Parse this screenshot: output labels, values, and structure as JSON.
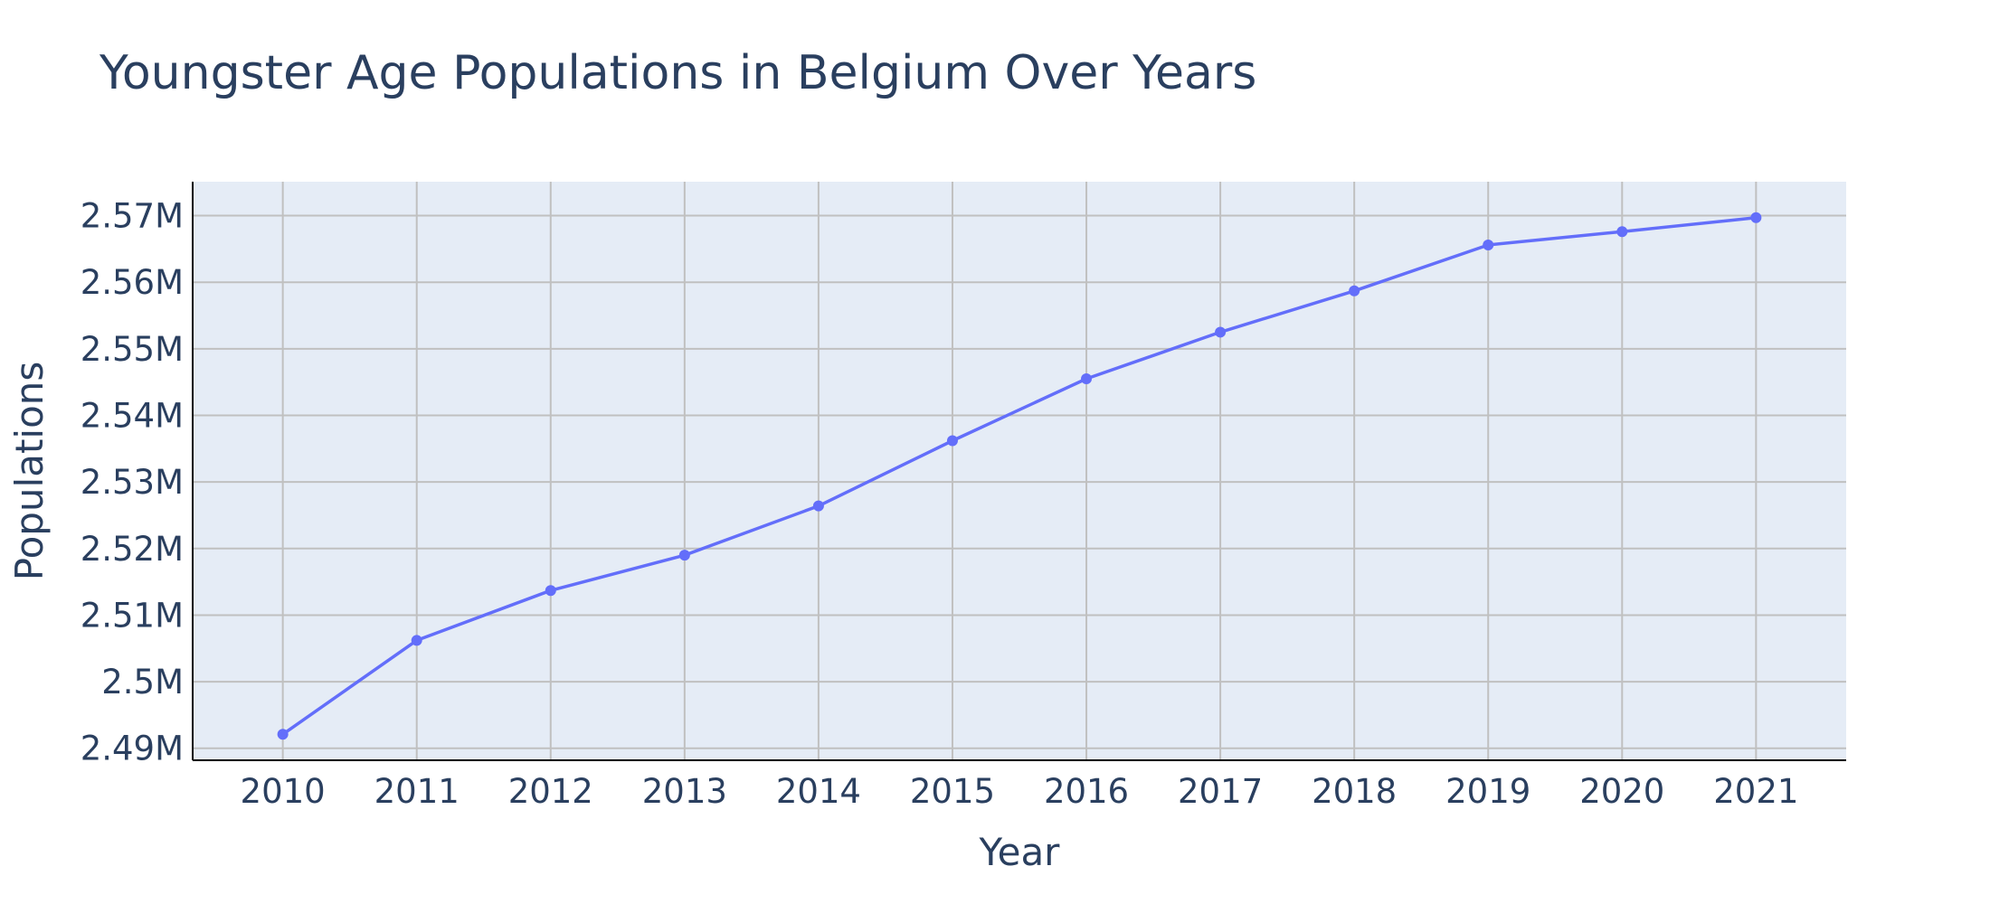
{
  "chart_data": {
    "type": "line",
    "title": "Youngster Age Populations in Belgium Over Years",
    "xlabel": "Year",
    "ylabel": "Populations",
    "x": [
      2010,
      2011,
      2012,
      2013,
      2014,
      2015,
      2016,
      2017,
      2018,
      2019,
      2020,
      2021
    ],
    "series": [
      {
        "values": [
          2492100,
          2506200,
          2513700,
          2519000,
          2526400,
          2536200,
          2545500,
          2552500,
          2558700,
          2565600,
          2567600,
          2569700
        ],
        "color": "#636efa"
      }
    ],
    "ylim": [
      2488200,
      2575100
    ],
    "y_ticks": [
      2490000,
      2500000,
      2510000,
      2520000,
      2530000,
      2540000,
      2550000,
      2560000,
      2570000
    ],
    "y_tick_labels": [
      "2.49M",
      "2.5M",
      "2.51M",
      "2.52M",
      "2.53M",
      "2.54M",
      "2.55M",
      "2.56M",
      "2.57M"
    ],
    "x_tick_labels": [
      "2010",
      "2011",
      "2012",
      "2013",
      "2014",
      "2015",
      "2016",
      "2017",
      "2018",
      "2019",
      "2020",
      "2021"
    ],
    "grid": true,
    "colors": {
      "plot_bg": "#e5ecf6",
      "grid": "#c0c0c0",
      "text": "#2a3f5f",
      "axis_line": "#000000",
      "line": "#636efa"
    }
  }
}
